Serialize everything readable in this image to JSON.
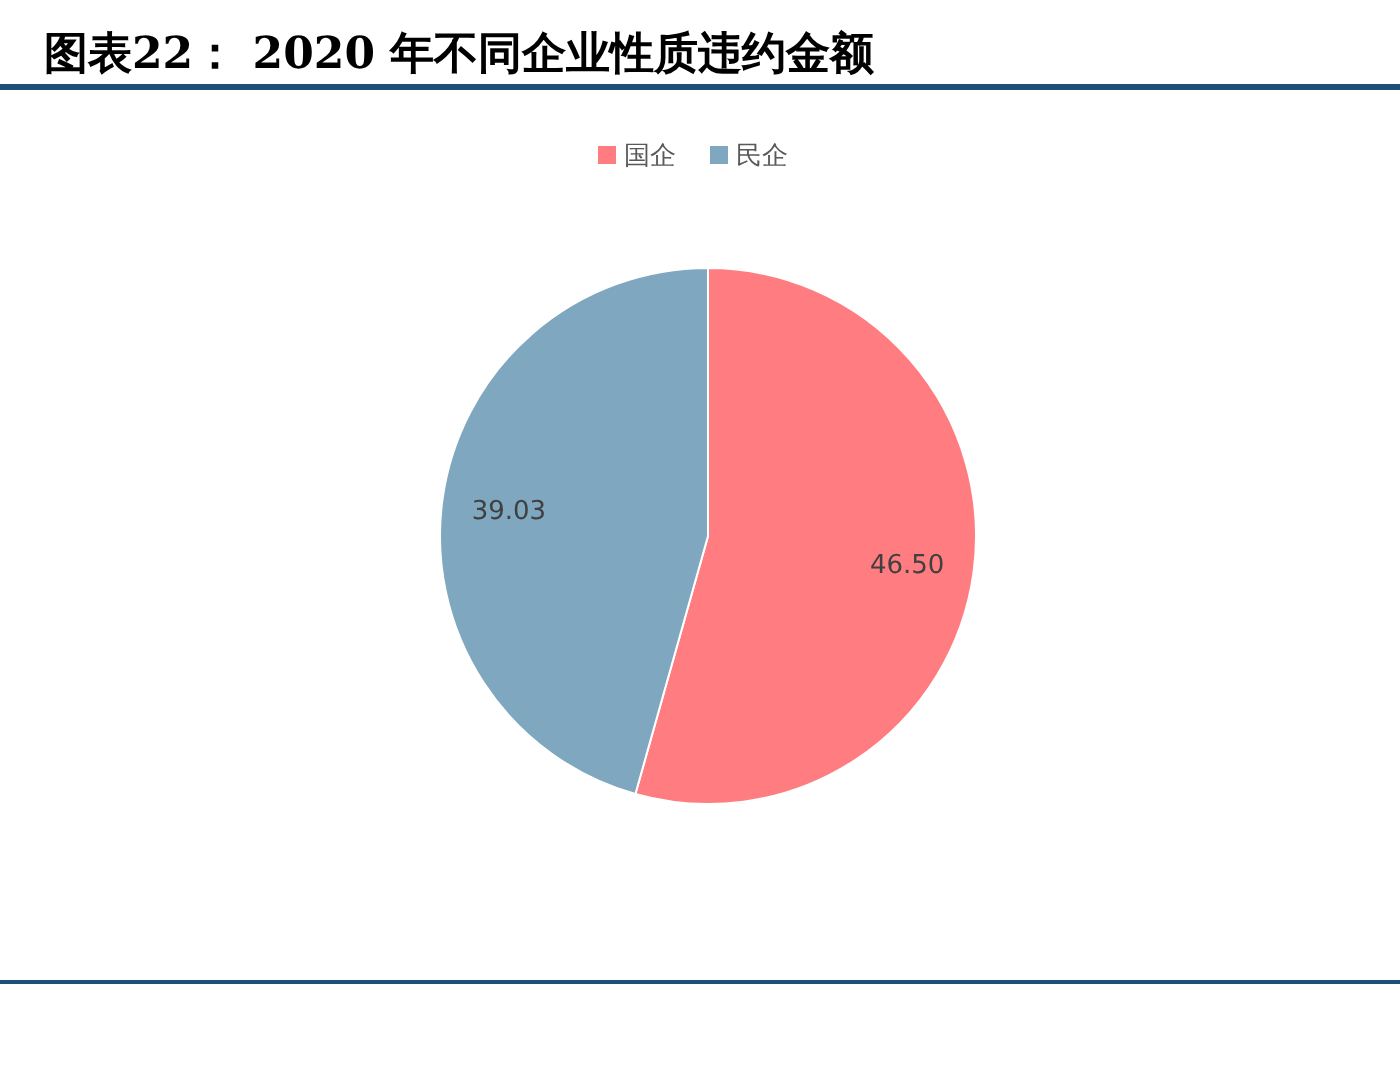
{
  "chart_data": {
    "type": "pie",
    "title": "图表22： 2020 年不同企业性质违约金额",
    "categories": [
      "国企",
      "民企"
    ],
    "values": [
      46.5,
      39.03
    ],
    "value_labels": [
      "46.50",
      "39.03"
    ],
    "colors": [
      "#ff7c80",
      "#7fa7bf"
    ],
    "legend": "top"
  }
}
